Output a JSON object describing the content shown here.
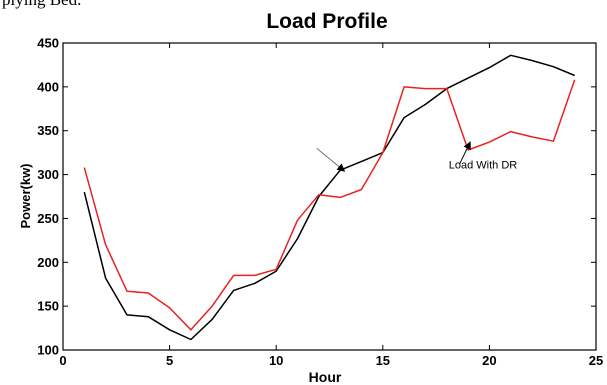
{
  "page": {
    "top_text_fragment": "plying Bed."
  },
  "chart_data": {
    "type": "line",
    "title": "Load Profile",
    "xlabel": "Hour",
    "ylabel": "Power(kw)",
    "xlim": [
      0,
      25
    ],
    "ylim": [
      100,
      450
    ],
    "x_ticks": [
      0,
      5,
      10,
      15,
      20,
      25
    ],
    "y_ticks": [
      100,
      150,
      200,
      250,
      300,
      350,
      400,
      450
    ],
    "grid": false,
    "legend": "none",
    "series": [
      {
        "color": "#000000",
        "x": [
          1,
          2,
          3,
          4,
          5,
          6,
          7,
          8,
          9,
          10,
          11,
          12,
          13,
          14,
          15,
          16,
          17,
          18,
          19,
          20,
          21,
          22,
          23,
          24
        ],
        "values": [
          280,
          182,
          140,
          138,
          123,
          112,
          135,
          168,
          176,
          190,
          227,
          275,
          305,
          315,
          325,
          365,
          380,
          398,
          410,
          422,
          436,
          430,
          423,
          413
        ]
      },
      {
        "color": "#e8231f",
        "x": [
          1,
          2,
          3,
          4,
          5,
          6,
          7,
          8,
          9,
          10,
          11,
          12,
          13,
          14,
          15,
          16,
          17,
          18,
          19,
          20,
          21,
          22,
          23,
          24
        ],
        "values": [
          308,
          220,
          167,
          165,
          148,
          123,
          150,
          185,
          185,
          192,
          248,
          277,
          274,
          283,
          325,
          400,
          398,
          398,
          328,
          337,
          349,
          343,
          338,
          408
        ]
      }
    ],
    "annotations": [
      {
        "text": "Load With DR",
        "x": 19.7,
        "y": 307,
        "arrow_to": [
          19.1,
          337
        ],
        "arrow_from": [
          18.6,
          312
        ]
      },
      {
        "text": "",
        "arrow_from": [
          11.9,
          330
        ],
        "arrow_to": [
          13.2,
          304
        ]
      }
    ]
  }
}
